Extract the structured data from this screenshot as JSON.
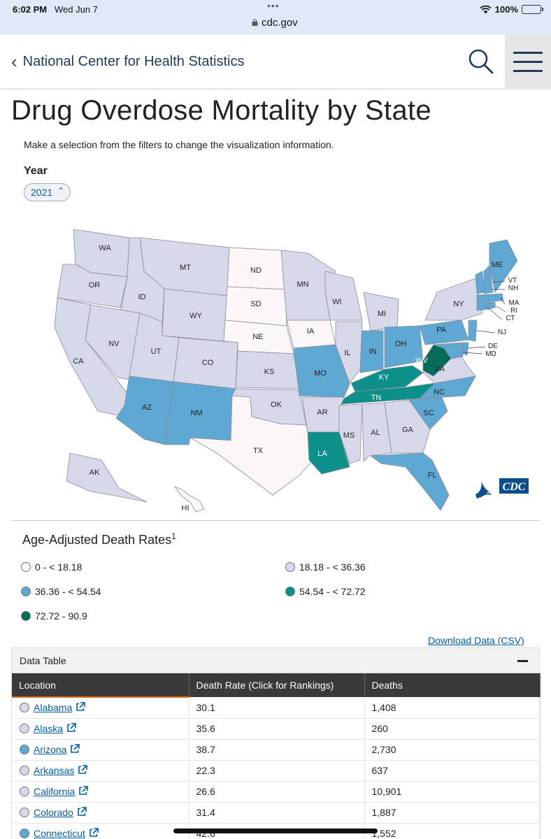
{
  "status_bar": {
    "time": "6:02 PM",
    "date": "Wed Jun 7",
    "battery": "100%",
    "url": "cdc.gov"
  },
  "header": {
    "back_label": "National Center for Health Statistics"
  },
  "page": {
    "title": "Drug Overdose Mortality by State",
    "instructions": "Make a selection from the filters to change the visualization information.",
    "year_label": "Year",
    "year_value": "2021"
  },
  "legend": {
    "title": "Age-Adjusted Death Rates",
    "footnote": "1",
    "bins": [
      {
        "label": "0 - < 18.18",
        "color": "#fbf6f8"
      },
      {
        "label": "18.18 - < 36.36",
        "color": "#d7d8ea"
      },
      {
        "label": "36.36 - < 54.54",
        "color": "#5fa8d3"
      },
      {
        "label": "54.54 - < 72.72",
        "color": "#0d8f8a"
      },
      {
        "label": "72.72 - 90.9",
        "color": "#076b5a"
      }
    ]
  },
  "map_labels": {
    "WA": "WA",
    "OR": "OR",
    "CA": "CA",
    "ID": "ID",
    "NV": "NV",
    "MT": "MT",
    "WY": "WY",
    "UT": "UT",
    "AZ": "AZ",
    "CO": "CO",
    "NM": "NM",
    "ND": "ND",
    "SD": "SD",
    "NE": "NE",
    "KS": "KS",
    "OK": "OK",
    "TX": "TX",
    "MN": "MN",
    "IA": "IA",
    "MO": "MO",
    "AR": "AR",
    "LA": "LA",
    "WI": "WI",
    "IL": "IL",
    "MI": "MI",
    "IN": "IN",
    "OH": "OH",
    "KY": "KY",
    "TN": "TN",
    "MS": "MS",
    "AL": "AL",
    "GA": "GA",
    "FL": "FL",
    "SC": "SC",
    "NC": "NC",
    "VA": "VA",
    "WV": "WV",
    "PA": "PA",
    "NY": "NY",
    "ME": "ME",
    "VT": "VT",
    "NH": "NH",
    "MA": "MA",
    "RI": "RI",
    "CT": "CT",
    "NJ": "NJ",
    "DE": "DE",
    "MD": "MD",
    "AK": "AK",
    "HI": "HI"
  },
  "download_label": "Download Data (CSV)",
  "table": {
    "title": "Data Table",
    "columns": [
      "Location",
      "Death Rate (Click for Rankings)",
      "Deaths"
    ],
    "rows": [
      {
        "location": "Alabama",
        "rate": "30.1",
        "deaths": "1,408",
        "color": "#d7d8ea"
      },
      {
        "location": "Alaska",
        "rate": "35.6",
        "deaths": "260",
        "color": "#d7d8ea"
      },
      {
        "location": "Arizona",
        "rate": "38.7",
        "deaths": "2,730",
        "color": "#5fa8d3"
      },
      {
        "location": "Arkansas",
        "rate": "22.3",
        "deaths": "637",
        "color": "#d7d8ea"
      },
      {
        "location": "California",
        "rate": "26.6",
        "deaths": "10,901",
        "color": "#d7d8ea"
      },
      {
        "location": "Colorado",
        "rate": "31.4",
        "deaths": "1,887",
        "color": "#d7d8ea"
      },
      {
        "location": "Connecticut",
        "rate": "42.6",
        "deaths": "1,552",
        "color": "#5fa8d3"
      }
    ]
  }
}
